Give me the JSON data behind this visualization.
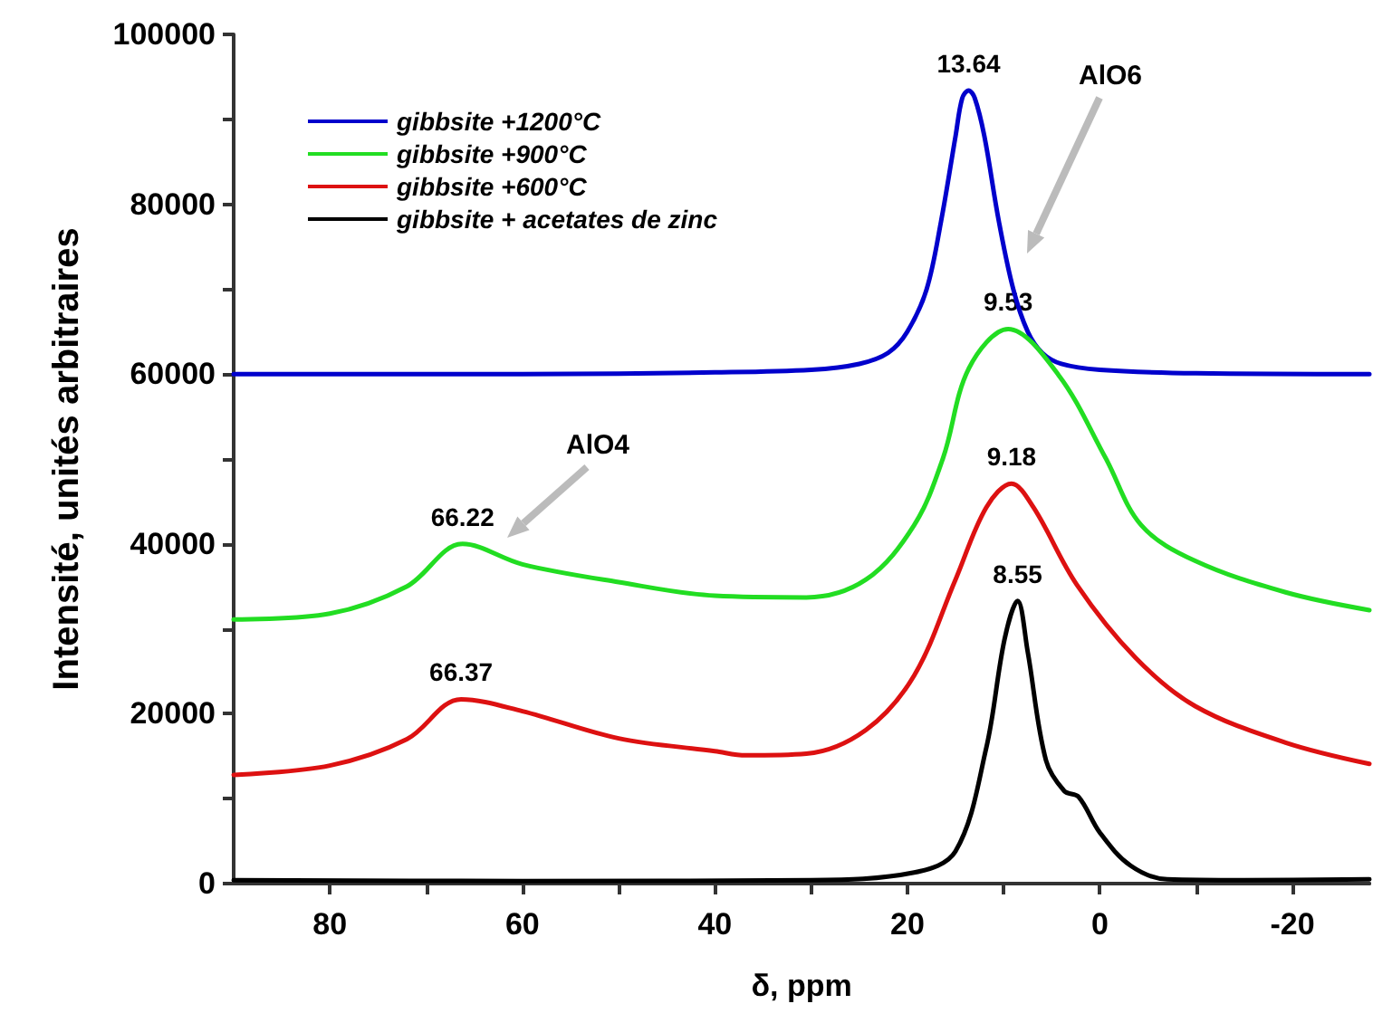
{
  "chart_data": {
    "type": "line",
    "xlabel": "δ, ppm",
    "ylabel": "Intensité, unités arbitraires",
    "xlim": [
      90,
      -28
    ],
    "xticks": [
      80,
      {
        "value": 70,
        "label": null
      },
      60,
      {
        "value": 50,
        "label": null
      },
      40,
      {
        "value": 30,
        "label": null
      },
      20,
      {
        "value": 10,
        "label": null
      },
      0,
      {
        "value": -10,
        "label": null
      },
      -20
    ],
    "ylim": [
      0,
      100000
    ],
    "yticks": [
      0,
      {
        "value": 10000,
        "label": null
      },
      20000,
      {
        "value": 30000,
        "label": null
      },
      40000,
      {
        "value": 50000,
        "label": null
      },
      60000,
      {
        "value": 70000,
        "label": null
      },
      80000,
      {
        "value": 90000,
        "label": null
      },
      100000
    ],
    "grid": false,
    "legend": "top left",
    "series": [
      {
        "name": "gibbsite +1200°C",
        "color": "#0000cc",
        "x": [
          90,
          60,
          40,
          30,
          25,
          22,
          20,
          18,
          16.5,
          15,
          14.3,
          13.64,
          13,
          12,
          10.5,
          9,
          7.5,
          6,
          4,
          0,
          -10,
          -28
        ],
        "values": [
          60000,
          60000,
          60200,
          60500,
          61200,
          62500,
          65000,
          70000,
          78000,
          88000,
          92500,
          93400,
          92500,
          88000,
          78000,
          70000,
          65000,
          62500,
          61200,
          60500,
          60100,
          60000
        ]
      },
      {
        "name": "gibbsite +900°C",
        "color": "#22dd22",
        "x": [
          90,
          80,
          72,
          66.22,
          60,
          50,
          40,
          30.5,
          24.3,
          19.3,
          16.3,
          13.6,
          9.53,
          4.3,
          -0.6,
          -4.3,
          -9.9,
          -19.3,
          -28
        ],
        "values": [
          31100,
          31800,
          35000,
          40000,
          37600,
          35500,
          33900,
          33700,
          35800,
          42200,
          50100,
          60700,
          65300,
          59900,
          50100,
          42200,
          38000,
          34300,
          32200
        ]
      },
      {
        "name": "gibbsite +600°C",
        "color": "#dd1111",
        "x": [
          90,
          80,
          72,
          66.37,
          60,
          50,
          40,
          36.8,
          30.5,
          24.3,
          19.3,
          15,
          11.8,
          9.18,
          6.9,
          2.4,
          -3.7,
          -9.9,
          -19.3,
          -28
        ],
        "values": [
          12800,
          13900,
          17000,
          21700,
          20300,
          17100,
          15600,
          15100,
          15300,
          18100,
          24500,
          35800,
          44300,
          47100,
          44300,
          35200,
          26600,
          20900,
          16600,
          14100
        ]
      },
      {
        "name": "gibbsite + acetates de zinc",
        "color": "#000000",
        "x": [
          90,
          60,
          30,
          19.3,
          15,
          11.8,
          9.9,
          8.55,
          7.5,
          5.6,
          3.7,
          2.2,
          0,
          -3.2,
          -7,
          -15,
          -28
        ],
        "values": [
          400,
          300,
          400,
          1300,
          3800,
          16000,
          28800,
          33300,
          27300,
          14500,
          10900,
          10200,
          6000,
          2100,
          500,
          400,
          500
        ]
      }
    ],
    "annotations": [
      {
        "text": "13.64",
        "x": 13.64,
        "y": 93400
      },
      {
        "text": "9.53",
        "x": 9.53,
        "y": 65300
      },
      {
        "text": "9.18",
        "x": 9.18,
        "y": 47100
      },
      {
        "text": "8.55",
        "x": 8.55,
        "y": 33300
      },
      {
        "text": "66.22",
        "x": 66.22,
        "y": 40000
      },
      {
        "text": "66.37",
        "x": 66.37,
        "y": 21700
      },
      "AlO6",
      "AlO4"
    ]
  }
}
